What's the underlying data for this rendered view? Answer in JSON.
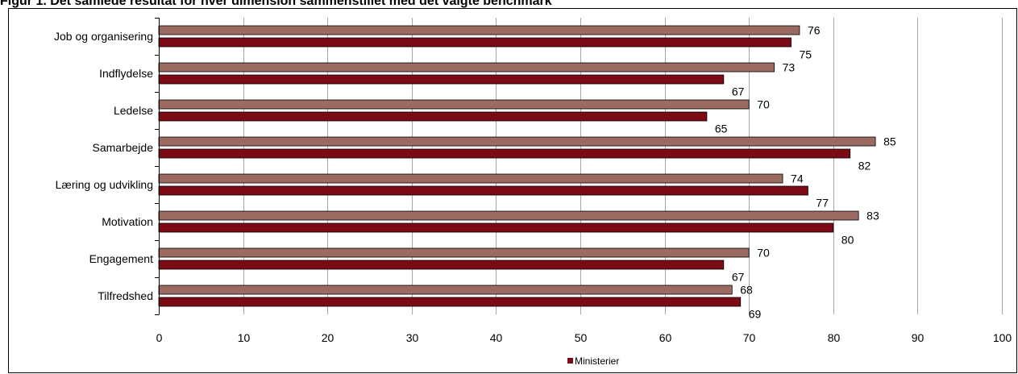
{
  "chart_data": {
    "type": "bar",
    "orientation": "horizontal",
    "title": "Figur 1. Det samlede resultat for hver dimension sammenstillet med det valgte benchmark",
    "categories": [
      "Job og organisering",
      "Indflydelse",
      "Ledelse",
      "Samarbejde",
      "Læring og udvikling",
      "Motivation",
      "Engagement",
      "Tilfredshed"
    ],
    "series": [
      {
        "values": [
          76,
          73,
          70,
          85,
          74,
          83,
          70,
          68
        ],
        "color": "#9b6a60"
      },
      {
        "name": "Ministerier",
        "values": [
          75,
          67,
          65,
          82,
          77,
          80,
          67,
          69
        ],
        "color": "#7b0a14"
      }
    ],
    "xlim": [
      0,
      100
    ],
    "xticks": [
      "0",
      "10",
      "20",
      "30",
      "40",
      "50",
      "60",
      "70",
      "80",
      "90",
      "100"
    ],
    "grid": "vertical",
    "legend": "bottom-center"
  }
}
